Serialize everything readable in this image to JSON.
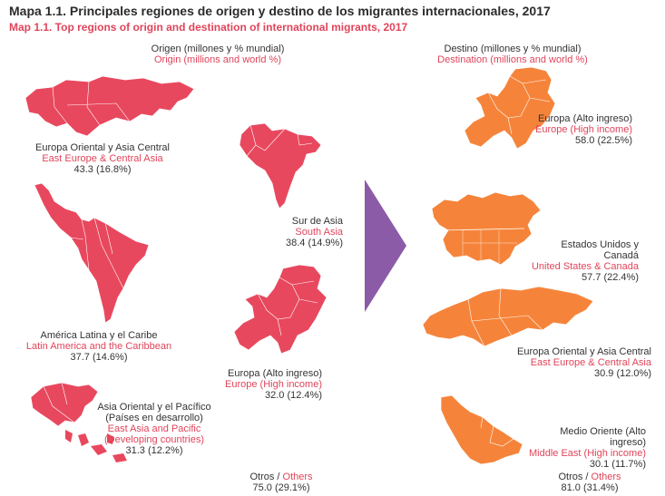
{
  "title": "Mapa 1.1. Principales regiones de origen y destino de los migrantes internacionales, 2017",
  "subtitle": "Map 1.1. Top regions of origin and destination of international migrants, 2017",
  "origin_header": {
    "es": "Origen (millones y % mundial)",
    "en": "Origin (millions and world %)"
  },
  "destination_header": {
    "es": "Destino (millones y % mundial)",
    "en": "Destination (millions and world %)"
  },
  "colors": {
    "origin": "#e8485e",
    "destination": "#f5843a",
    "arrow": "#8b5ba8",
    "accent_text": "#e0445a"
  },
  "origin": [
    {
      "es": "Europa Oriental y Asia Central",
      "en": "East Europe & Central Asia",
      "value": "43.3 (16.8%)"
    },
    {
      "es": "Sur de Asia",
      "en": "South Asia",
      "value": "38.4 (14.9%)"
    },
    {
      "es": "América Latina y el Caribe",
      "en": "Latin America and the Caribbean",
      "value": "37.7 (14.6%)"
    },
    {
      "es": "Europa (Alto ingreso)",
      "en": "Europe (High income)",
      "value": "32.0 (12.4%)"
    },
    {
      "es": "Asia Oriental y el Pacífico",
      "es2": "(Países en desarrollo)",
      "en": "East Asia and Pacific",
      "en2": "(Developing countries)",
      "value": "31.3 (12.2%)"
    }
  ],
  "origin_others": {
    "es": "Otros / ",
    "en": "Others",
    "value": "75.0 (29.1%)"
  },
  "destination": [
    {
      "es": "Europa (Alto ingreso)",
      "en": "Europe (High income)",
      "value": "58.0 (22.5%)"
    },
    {
      "es": "Estados Unidos y Canadá",
      "en": "United States & Canada",
      "value": "57.7 (22.4%)"
    },
    {
      "es": "Europa Oriental y Asia Central",
      "en": "East Europe & Central Asia",
      "value": "30.9 (12.0%)"
    },
    {
      "es": "Medio Oriente (Alto ingreso)",
      "en": "Middle East (High income)",
      "value": "30.1 (11.7%)"
    }
  ],
  "destination_others": {
    "es": "Otros / ",
    "en": "Others",
    "value": "81.0 (31.4%)"
  }
}
